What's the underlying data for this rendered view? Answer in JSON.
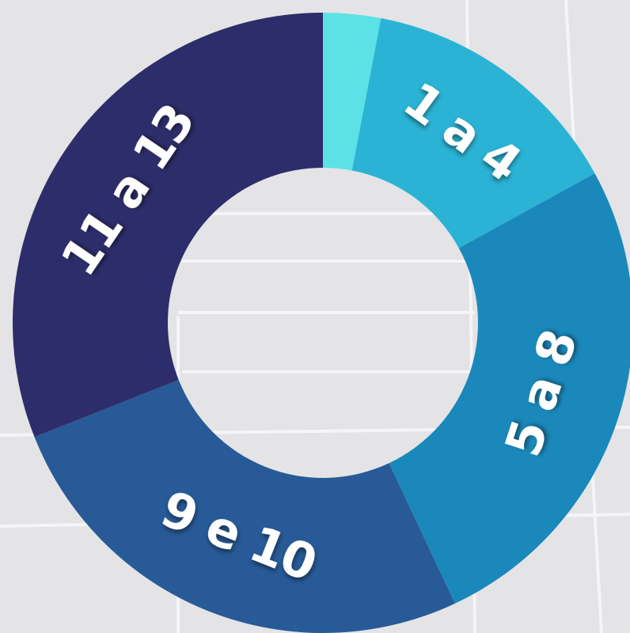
{
  "chart_data": {
    "type": "donut",
    "categories": [
      null,
      "1 a 4",
      "5 a 8",
      "9 e 10",
      "11 a 13"
    ],
    "values": [
      3,
      14,
      26,
      26,
      31
    ],
    "colors": [
      "#5ce1e6",
      "#2ab3d4",
      "#1a88bb",
      "#275a97",
      "#2e2d6b"
    ]
  }
}
